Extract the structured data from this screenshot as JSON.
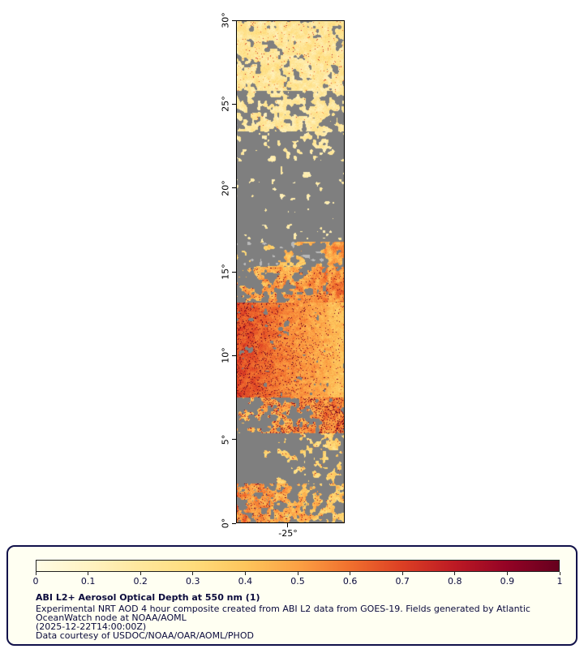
{
  "figure": {
    "y_ticks": [
      "30°",
      "25°",
      "20°",
      "15°",
      "10°",
      "5°",
      "0°"
    ],
    "x_tick": "-25°"
  },
  "legend": {
    "ticks": [
      "0",
      "0.1",
      "0.2",
      "0.3",
      "0.4",
      "0.5",
      "0.6",
      "0.7",
      "0.8",
      "0.9",
      "1"
    ],
    "title": "ABI L2+ Aerosol Optical Depth at 550 nm (1)",
    "lines": [
      "Experimental NRT AOD 4 hour composite created from ABI L2 data from GOES-19. Fields generated by Atlantic",
      "OceanWatch node at NOAA/AOML",
      "(2025-12-22T14:00:00Z)",
      "Data courtesy of USDOC/NOAA/OAR/AOML/PHOD"
    ],
    "panel_bg": "#fffff2",
    "border_color": "#11114a",
    "text_color": "#0a0a3c"
  },
  "chart_data": {
    "type": "heatmap",
    "title": "ABI L2+ Aerosol Optical Depth at 550 nm (1)",
    "variable": "Aerosol Optical Depth at 550 nm (unitless)",
    "source": "GOES-19 ABI L2, 4 hour NRT composite, 2025-12-22T14:00:00Z",
    "axis": {
      "lat_min": 0,
      "lat_max": 30,
      "lat_tick_step": 5,
      "lon_tick_label": "-25°"
    },
    "colorbar": {
      "min": 0,
      "max": 1,
      "tick_step": 0.1,
      "orientation": "horizontal"
    },
    "missing_color": "#7f7f7f",
    "teal_color": "#6f8f9e",
    "cloud_color": "#b9b9b9",
    "colormap_stops": [
      {
        "v": 0.0,
        "c": "#fffce4"
      },
      {
        "v": 0.1,
        "c": "#fff3c2"
      },
      {
        "v": 0.2,
        "c": "#fee79c"
      },
      {
        "v": 0.3,
        "c": "#fedc7c"
      },
      {
        "v": 0.4,
        "c": "#fdc55c"
      },
      {
        "v": 0.5,
        "c": "#fca144"
      },
      {
        "v": 0.6,
        "c": "#f0702e"
      },
      {
        "v": 0.7,
        "c": "#dc3f24"
      },
      {
        "v": 0.8,
        "c": "#bd1a24"
      },
      {
        "v": 0.9,
        "c": "#940325"
      },
      {
        "v": 1.0,
        "c": "#66001e"
      }
    ],
    "bands": [
      {
        "lat": "30-25.8N",
        "desc": "widespread light aerosol, AOD 0.1-0.3, scattered gaps",
        "f0": 0.0,
        "f1": 0.14,
        "cov": 0.88,
        "aodMin": 0.1,
        "aodMax": 0.32,
        "speckle": 0.02
      },
      {
        "lat": "25.8-23.4N",
        "desc": "patchy light aerosol AOD 0.1-0.3",
        "f0": 0.14,
        "f1": 0.22,
        "cov": 0.55,
        "aodMin": 0.1,
        "aodMax": 0.3,
        "speckle": 0.01
      },
      {
        "lat": "23.4-21.6N",
        "desc": "sparse light aerosol patches",
        "f0": 0.22,
        "f1": 0.28,
        "cov": 0.28,
        "aodMin": 0.1,
        "aodMax": 0.26
      },
      {
        "lat": "21.6-16.8N",
        "desc": "mostly missing data (gray)",
        "f0": 0.28,
        "f1": 0.44,
        "cov": 0.05,
        "aodMin": 0.1,
        "aodMax": 0.22
      },
      {
        "lat": "16.8-15.3N",
        "desc": "transition, moderate AOD growing toward east",
        "f0": 0.44,
        "f1": 0.49,
        "cov": 0.32,
        "covRight": 0.3,
        "aodMin": 0.18,
        "aodMax": 0.45,
        "xBias": -0.2,
        "cloud": true
      },
      {
        "lat": "15.3-13.2N",
        "desc": "plume edge, AOD 0.3-0.6",
        "f0": 0.49,
        "f1": 0.56,
        "cov": 0.62,
        "covRight": 0.45,
        "aodMin": 0.28,
        "aodMax": 0.58,
        "xBias": -0.12,
        "speckle": 0.05
      },
      {
        "lat": "13.2-7.5N",
        "desc": "dense dust plume, AOD 0.35-0.5 east core, 0.7-1.0 west speckles",
        "f0": 0.56,
        "f1": 0.75,
        "cov": 0.97,
        "covRight": 0.08,
        "aodMin": 0.33,
        "aodMax": 0.48,
        "xBias": 0.28,
        "speckle": 0.1
      },
      {
        "lat": "7.5-5.4N",
        "desc": "plume southern edge, dark red clusters east, AOD 0.3-0.9",
        "f0": 0.75,
        "f1": 0.82,
        "cov": 0.6,
        "covRight": 0.35,
        "aodMin": 0.3,
        "aodMax": 0.55,
        "xBias": -0.15,
        "speckle": 0.15
      },
      {
        "lat": "5.4-2.4N",
        "desc": "mostly gray with sparse moderate patches",
        "f0": 0.82,
        "f1": 0.92,
        "cov": 0.18,
        "covRight": 0.2,
        "aodMin": 0.2,
        "aodMax": 0.45,
        "speckle": 0.02
      },
      {
        "lat": "2.4-0N",
        "desc": "orange/red speckled patches west, yellow patch center",
        "f0": 0.92,
        "f1": 1.001,
        "cov": 0.6,
        "covRight": -0.15,
        "aodMin": 0.22,
        "aodMax": 0.5,
        "xBias": 0.2,
        "speckle": 0.08,
        "teal": 0.03
      }
    ]
  }
}
